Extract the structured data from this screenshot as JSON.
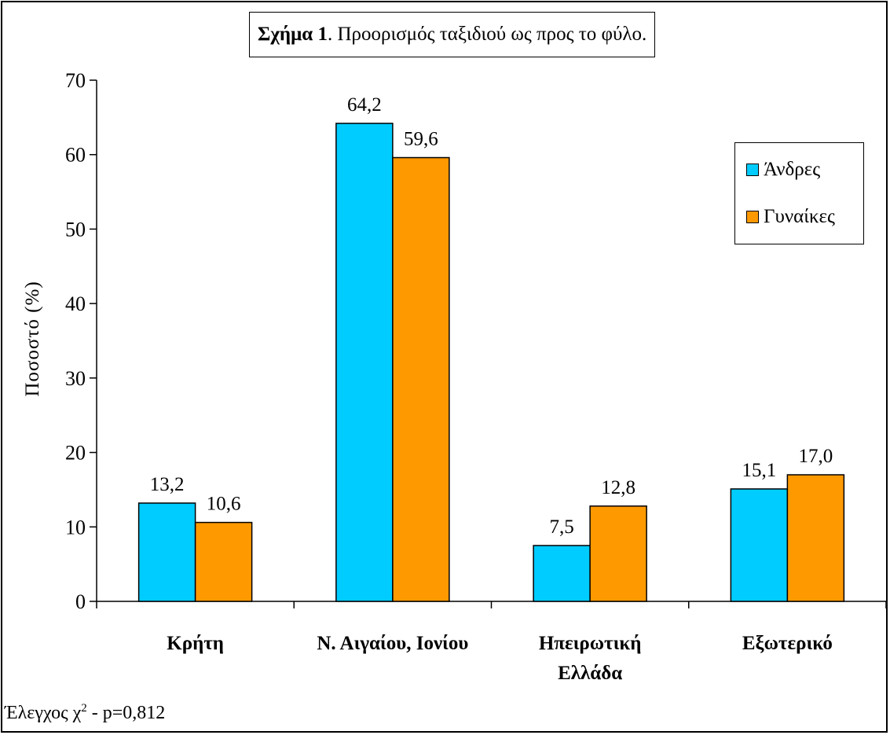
{
  "chart_data": {
    "type": "bar",
    "title_bold": "Σχήμα 1",
    "title_rest": ". Προορισμός ταξιδιού ως προς το φύλο.",
    "ylabel": "Ποσοστό (%)",
    "ylim": [
      0,
      70
    ],
    "yticks": [
      0,
      10,
      20,
      30,
      40,
      50,
      60,
      70
    ],
    "categories": [
      [
        "Κρήτη"
      ],
      [
        "Ν. Αιγαίου, Ιονίου"
      ],
      [
        "Ηπειρωτική",
        "Ελλάδα"
      ],
      [
        "Εξωτερικό"
      ]
    ],
    "series": [
      {
        "name": "Άνδρες",
        "color": "#00ccff",
        "values": [
          13.2,
          64.2,
          7.5,
          15.1
        ],
        "labels": [
          "13,2",
          "64,2",
          "7,5",
          "15,1"
        ]
      },
      {
        "name": "Γυναίκες",
        "color": "#ff9900",
        "values": [
          10.6,
          59.6,
          12.8,
          17.0
        ],
        "labels": [
          "10,6",
          "59,6",
          "12,8",
          "17,0"
        ]
      }
    ],
    "legend_position": "right",
    "grid": false
  },
  "footnote": {
    "prefix": "Έλεγχος χ",
    "sup": "2",
    "suffix": " - p=0,812"
  }
}
